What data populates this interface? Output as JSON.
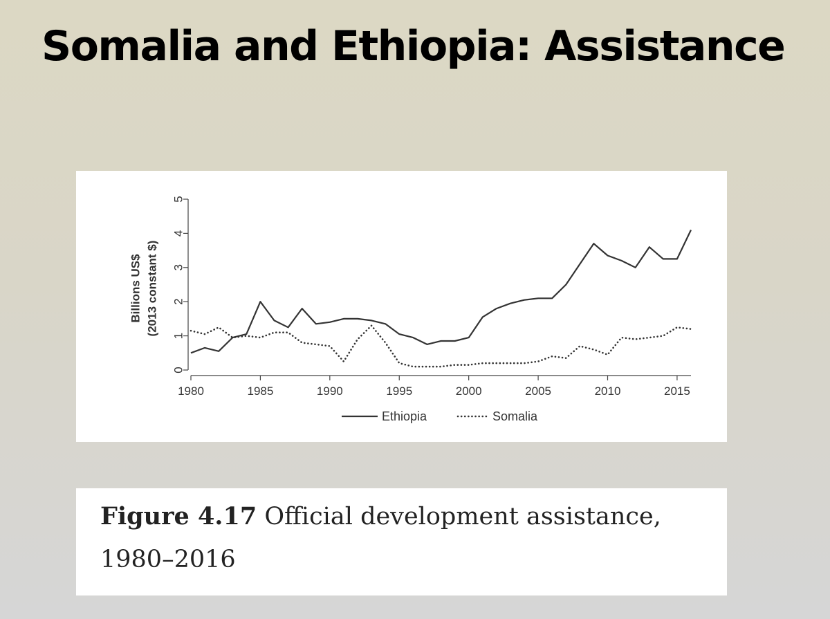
{
  "slide": {
    "title": "Somalia and Ethiopia: Assistance"
  },
  "caption": {
    "label": "Figure 4.17",
    "text": " Official development assistance,",
    "text2": "1980–2016"
  },
  "chart_data": {
    "type": "line",
    "title": "",
    "xlabel": "",
    "ylabel": [
      "Billions US$",
      "(2013 constant $)"
    ],
    "xlim": [
      1980,
      2016
    ],
    "ylim": [
      0,
      5
    ],
    "x_ticks": [
      1980,
      1985,
      1990,
      1995,
      2000,
      2005,
      2010,
      2015
    ],
    "y_ticks": [
      0,
      1,
      2,
      3,
      4,
      5
    ],
    "grid": false,
    "legend_position": "bottom",
    "x": [
      1980,
      1981,
      1982,
      1983,
      1984,
      1985,
      1986,
      1987,
      1988,
      1989,
      1990,
      1991,
      1992,
      1993,
      1994,
      1995,
      1996,
      1997,
      1998,
      1999,
      2000,
      2001,
      2002,
      2003,
      2004,
      2005,
      2006,
      2007,
      2008,
      2009,
      2010,
      2011,
      2012,
      2013,
      2014,
      2015,
      2016
    ],
    "series": [
      {
        "name": "Ethiopia",
        "style": "solid",
        "color": "#333333",
        "values": [
          0.5,
          0.65,
          0.55,
          0.95,
          1.05,
          2.0,
          1.45,
          1.25,
          1.8,
          1.35,
          1.4,
          1.5,
          1.5,
          1.45,
          1.35,
          1.05,
          0.95,
          0.75,
          0.85,
          0.85,
          0.95,
          1.55,
          1.8,
          1.95,
          2.05,
          2.1,
          2.1,
          2.5,
          3.1,
          3.7,
          3.35,
          3.2,
          3.0,
          3.6,
          3.25,
          3.25,
          4.1
        ]
      },
      {
        "name": "Somalia",
        "style": "dotted",
        "color": "#333333",
        "values": [
          1.15,
          1.05,
          1.25,
          0.95,
          1.0,
          0.95,
          1.1,
          1.1,
          0.8,
          0.75,
          0.7,
          0.25,
          0.9,
          1.3,
          0.8,
          0.2,
          0.1,
          0.1,
          0.1,
          0.15,
          0.15,
          0.2,
          0.2,
          0.2,
          0.2,
          0.25,
          0.4,
          0.35,
          0.7,
          0.6,
          0.45,
          0.95,
          0.9,
          0.95,
          1.0,
          1.25,
          1.2
        ]
      }
    ]
  }
}
